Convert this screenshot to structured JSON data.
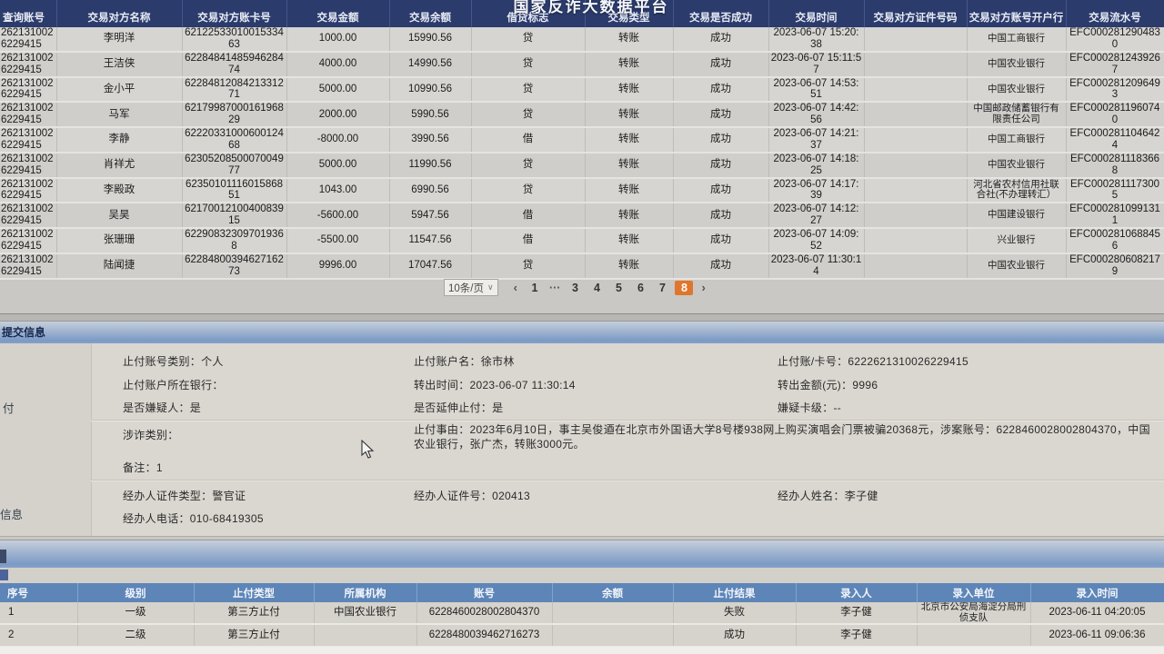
{
  "platform_title": "国家反诈大数据平台",
  "top_table": {
    "columns": [
      "查询账号",
      "交易对方名称",
      "交易对方账卡号",
      "交易金额",
      "交易余额",
      "借贷标志",
      "交易类型",
      "交易是否成功",
      "交易时间",
      "交易对方证件号码",
      "交易对方账号开户行",
      "交易流水号"
    ],
    "rows": [
      [
        "2621310026229415",
        "李明洋",
        "6212253301001533463",
        "1000.00",
        "15990.56",
        "贷",
        "转账",
        "成功",
        "2023-06-07 15:20:38",
        "",
        "中国工商银行",
        "EFC0002812904830"
      ],
      [
        "2621310026229415",
        "王洁侠",
        "6228484148594628474",
        "4000.00",
        "14990.56",
        "贷",
        "转账",
        "成功",
        "2023-06-07 15:11:57",
        "",
        "中国农业银行",
        "EFC0002812439267"
      ],
      [
        "2621310026229415",
        "金小平",
        "6228481208421331271",
        "5000.00",
        "10990.56",
        "贷",
        "转账",
        "成功",
        "2023-06-07 14:53:51",
        "",
        "中国农业银行",
        "EFC0002812096493"
      ],
      [
        "2621310026229415",
        "马军",
        "6217998700016196829",
        "2000.00",
        "5990.56",
        "贷",
        "转账",
        "成功",
        "2023-06-07 14:42:56",
        "",
        "中国邮政储蓄银行有限责任公司",
        "EFC0002811960740"
      ],
      [
        "2621310026229415",
        "李静",
        "6222033100060012468",
        "-8000.00",
        "3990.56",
        "借",
        "转账",
        "成功",
        "2023-06-07 14:21:37",
        "",
        "中国工商银行",
        "EFC0002811046424"
      ],
      [
        "2621310026229415",
        "肖祥尤",
        "6230520850007004977",
        "5000.00",
        "11990.56",
        "贷",
        "转账",
        "成功",
        "2023-06-07 14:18:25",
        "",
        "中国农业银行",
        "EFC0002811183668"
      ],
      [
        "2621310026229415",
        "李殿政",
        "6235010111601586851",
        "1043.00",
        "6990.56",
        "贷",
        "转账",
        "成功",
        "2023-06-07 14:17:39",
        "",
        "河北省农村信用社联合社(不办理转汇）",
        "EFC0002811173005"
      ],
      [
        "2621310026229415",
        "吴昊",
        "6217001210040083915",
        "-5600.00",
        "5947.56",
        "借",
        "转账",
        "成功",
        "2023-06-07 14:12:27",
        "",
        "中国建设银行",
        "EFC0002810991311"
      ],
      [
        "2621310026229415",
        "张珊珊",
        "622908323097019368",
        "-5500.00",
        "11547.56",
        "借",
        "转账",
        "成功",
        "2023-06-07 14:09:52",
        "",
        "兴业银行",
        "EFC0002810688456"
      ],
      [
        "2621310026229415",
        "陆闻捷",
        "6228480039462716273",
        "9996.00",
        "17047.56",
        "贷",
        "转账",
        "成功",
        "2023-06-07 11:30:14",
        "",
        "中国农业银行",
        "EFC0002806082179"
      ]
    ]
  },
  "pagination": {
    "page_size_label": "10条/页",
    "page_size_caret": "∨",
    "prev": "‹",
    "next": "›",
    "pages": [
      "1",
      "···",
      "3",
      "4",
      "5",
      "6",
      "7",
      "8"
    ],
    "current_page": "8"
  },
  "submit_section": {
    "title": "提交信息",
    "left_fragments": {
      "row1": "付",
      "row2": "信息"
    },
    "fields": {
      "account_type": "止付账号类别：个人",
      "account_name": "止付账户名：徐市林",
      "card_no": "止付账/卡号：6222621310026229415",
      "account_bank": "止付账户所在银行：",
      "transfer_time": "转出时间：2023-06-07 11:30:14",
      "transfer_amount": "转出金额(元)：9996",
      "is_suspect": "是否嫌疑人：是",
      "extend_stop": "是否延伸止付：是",
      "suspect_card_level": "嫌疑卡级：--",
      "fraud_category": "涉诈类别：",
      "stop_reason": "止付事由：2023年6月10日，事主吴俊逎在北京市外国语大学8号楼938网上购买演唱会门票被骗20368元，涉案账号：6228460028002804370，中国农业银行，张广杰，转账3000元。",
      "remark": "备注：1",
      "operator_id_type": "经办人证件类型：警官证",
      "operator_id_no": "经办人证件号：020413",
      "operator_name": "经办人姓名：李子健",
      "operator_phone": "经办人电话：010-68419305"
    }
  },
  "bottom_table": {
    "columns": [
      "序号",
      "级别",
      "止付类型",
      "所属机构",
      "账号",
      "余额",
      "止付结果",
      "录入人",
      "录入单位",
      "录入时间"
    ],
    "rows": [
      [
        "1",
        "一级",
        "第三方止付",
        "中国农业银行",
        "6228460028002804370",
        "",
        "失败",
        "李子健",
        "北京市公安局海淀分局刑侦支队",
        "2023-06-11 04:20:05"
      ],
      [
        "2",
        "二级",
        "第三方止付",
        "",
        "6228480039462716273",
        "",
        "成功",
        "李子健",
        "",
        "2023-06-11 09:06:36"
      ]
    ]
  },
  "colors": {
    "top_header_bg": "#2b3b6c",
    "bottom_header_bg": "#5d85b8",
    "current_page_bg": "#e0762c",
    "section_bar_blue": "#7b9ac5"
  }
}
